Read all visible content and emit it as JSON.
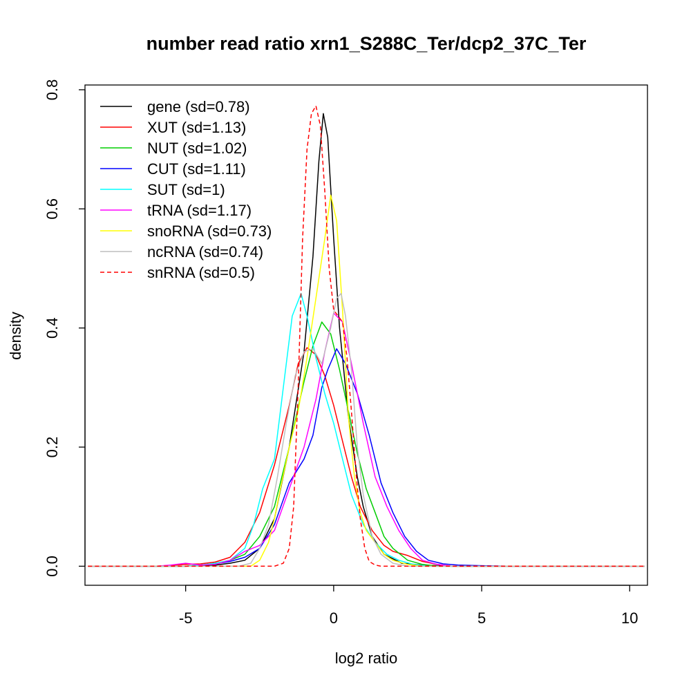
{
  "chart_data": {
    "type": "line",
    "title": "number read ratio xrn1_S288C_Ter/dcp2_37C_Ter",
    "xlabel": "log2 ratio",
    "ylabel": "density",
    "xlim": [
      -8.4,
      10.6
    ],
    "ylim": [
      -0.032,
      0.808
    ],
    "x_ticks": [
      -5,
      0,
      5,
      10
    ],
    "y_ticks": [
      0.0,
      0.2,
      0.4,
      0.6,
      0.8
    ],
    "x_tick_labels": [
      "-5",
      "0",
      "5",
      "10"
    ],
    "y_tick_labels": [
      "0.0",
      "0.2",
      "0.4",
      "0.6",
      "0.8"
    ],
    "grid": false,
    "legend_position": "top-left",
    "series": [
      {
        "name": "gene (sd=0.78)",
        "color": "#000000",
        "dash": "solid",
        "points": [
          [
            -8.3,
            0
          ],
          [
            -5,
            0
          ],
          [
            -4,
            0.002
          ],
          [
            -3.5,
            0.005
          ],
          [
            -3,
            0.01
          ],
          [
            -2.5,
            0.03
          ],
          [
            -2,
            0.08
          ],
          [
            -1.5,
            0.2
          ],
          [
            -1,
            0.36
          ],
          [
            -0.7,
            0.52
          ],
          [
            -0.5,
            0.68
          ],
          [
            -0.35,
            0.76
          ],
          [
            -0.2,
            0.72
          ],
          [
            0,
            0.55
          ],
          [
            0.2,
            0.4
          ],
          [
            0.5,
            0.25
          ],
          [
            0.8,
            0.15
          ],
          [
            1,
            0.1
          ],
          [
            1.3,
            0.05
          ],
          [
            1.7,
            0.02
          ],
          [
            2.3,
            0.005
          ],
          [
            3,
            0.002
          ],
          [
            4,
            0
          ],
          [
            10.5,
            0
          ]
        ]
      },
      {
        "name": "XUT (sd=1.13)",
        "color": "#ff0000",
        "dash": "solid",
        "points": [
          [
            -8.3,
            0
          ],
          [
            -6,
            0
          ],
          [
            -5,
            0.003
          ],
          [
            -4.5,
            0.004
          ],
          [
            -4,
            0.007
          ],
          [
            -3.5,
            0.015
          ],
          [
            -3,
            0.04
          ],
          [
            -2.5,
            0.09
          ],
          [
            -2,
            0.17
          ],
          [
            -1.5,
            0.27
          ],
          [
            -1.2,
            0.34
          ],
          [
            -0.9,
            0.367
          ],
          [
            -0.6,
            0.355
          ],
          [
            -0.3,
            0.32
          ],
          [
            0,
            0.27
          ],
          [
            0.3,
            0.21
          ],
          [
            0.6,
            0.15
          ],
          [
            0.9,
            0.1
          ],
          [
            1.3,
            0.06
          ],
          [
            1.7,
            0.035
          ],
          [
            2,
            0.025
          ],
          [
            2.5,
            0.018
          ],
          [
            3,
            0.008
          ],
          [
            3.5,
            0.003
          ],
          [
            4,
            0
          ],
          [
            10.5,
            0
          ]
        ]
      },
      {
        "name": "NUT (sd=1.02)",
        "color": "#00cd00",
        "dash": "solid",
        "points": [
          [
            -8.3,
            0
          ],
          [
            -5,
            0
          ],
          [
            -4.5,
            0.002
          ],
          [
            -4,
            0.005
          ],
          [
            -3.5,
            0.01
          ],
          [
            -3,
            0.02
          ],
          [
            -2.5,
            0.05
          ],
          [
            -2,
            0.1
          ],
          [
            -1.5,
            0.2
          ],
          [
            -1,
            0.31
          ],
          [
            -0.7,
            0.37
          ],
          [
            -0.4,
            0.41
          ],
          [
            -0.1,
            0.39
          ],
          [
            0.2,
            0.33
          ],
          [
            0.5,
            0.26
          ],
          [
            0.8,
            0.19
          ],
          [
            1.1,
            0.13
          ],
          [
            1.4,
            0.09
          ],
          [
            1.7,
            0.05
          ],
          [
            2,
            0.03
          ],
          [
            2.5,
            0.01
          ],
          [
            3,
            0.003
          ],
          [
            3.5,
            0
          ],
          [
            10.5,
            0
          ]
        ]
      },
      {
        "name": "CUT (sd=1.11)",
        "color": "#0000ff",
        "dash": "solid",
        "points": [
          [
            -8.3,
            0
          ],
          [
            -5,
            0
          ],
          [
            -4.5,
            0.002
          ],
          [
            -4,
            0.004
          ],
          [
            -3.5,
            0.008
          ],
          [
            -3,
            0.015
          ],
          [
            -2.5,
            0.03
          ],
          [
            -2,
            0.07
          ],
          [
            -1.5,
            0.14
          ],
          [
            -1,
            0.18
          ],
          [
            -0.7,
            0.22
          ],
          [
            -0.4,
            0.3
          ],
          [
            -0.2,
            0.33
          ],
          [
            0.1,
            0.365
          ],
          [
            0.4,
            0.34
          ],
          [
            0.8,
            0.29
          ],
          [
            1.2,
            0.22
          ],
          [
            1.6,
            0.14
          ],
          [
            2,
            0.09
          ],
          [
            2.4,
            0.05
          ],
          [
            2.8,
            0.025
          ],
          [
            3.2,
            0.01
          ],
          [
            3.7,
            0.004
          ],
          [
            4.2,
            0.002
          ],
          [
            5,
            0.001
          ],
          [
            6,
            0
          ],
          [
            10.5,
            0
          ]
        ]
      },
      {
        "name": "SUT (sd=1)",
        "color": "#00ffff",
        "dash": "solid",
        "points": [
          [
            -8.3,
            0
          ],
          [
            -5,
            0
          ],
          [
            -4.5,
            0.002
          ],
          [
            -4,
            0.005
          ],
          [
            -3.5,
            0.01
          ],
          [
            -3,
            0.03
          ],
          [
            -2.7,
            0.07
          ],
          [
            -2.4,
            0.13
          ],
          [
            -2,
            0.18
          ],
          [
            -1.7,
            0.3
          ],
          [
            -1.4,
            0.42
          ],
          [
            -1.1,
            0.458
          ],
          [
            -0.9,
            0.42
          ],
          [
            -0.6,
            0.35
          ],
          [
            -0.3,
            0.29
          ],
          [
            0,
            0.24
          ],
          [
            0.3,
            0.18
          ],
          [
            0.6,
            0.12
          ],
          [
            1,
            0.07
          ],
          [
            1.4,
            0.04
          ],
          [
            1.8,
            0.02
          ],
          [
            2.2,
            0.01
          ],
          [
            2.7,
            0.003
          ],
          [
            3.2,
            0
          ],
          [
            10.5,
            0
          ]
        ]
      },
      {
        "name": "tRNA (sd=1.17)",
        "color": "#ff00ff",
        "dash": "solid",
        "points": [
          [
            -8.3,
            0
          ],
          [
            -6,
            0
          ],
          [
            -5.5,
            0.002
          ],
          [
            -5,
            0.005
          ],
          [
            -4.5,
            0.002
          ],
          [
            -4,
            0.003
          ],
          [
            -3.5,
            0.01
          ],
          [
            -3,
            0.025
          ],
          [
            -2.5,
            0.035
          ],
          [
            -2,
            0.06
          ],
          [
            -1.5,
            0.13
          ],
          [
            -1,
            0.2
          ],
          [
            -0.6,
            0.28
          ],
          [
            -0.3,
            0.36
          ],
          [
            0,
            0.425
          ],
          [
            0.3,
            0.41
          ],
          [
            0.6,
            0.34
          ],
          [
            1,
            0.24
          ],
          [
            1.4,
            0.15
          ],
          [
            1.8,
            0.1
          ],
          [
            2.2,
            0.06
          ],
          [
            2.6,
            0.03
          ],
          [
            3,
            0.01
          ],
          [
            3.5,
            0.003
          ],
          [
            4,
            0
          ],
          [
            10.5,
            0
          ]
        ]
      },
      {
        "name": "snoRNA (sd=0.73)",
        "color": "#ffff00",
        "dash": "solid",
        "points": [
          [
            -8.3,
            0
          ],
          [
            -2.8,
            0
          ],
          [
            -2.5,
            0.01
          ],
          [
            -2.2,
            0.04
          ],
          [
            -2,
            0.08
          ],
          [
            -1.8,
            0.13
          ],
          [
            -1.5,
            0.2
          ],
          [
            -1.2,
            0.26
          ],
          [
            -0.9,
            0.35
          ],
          [
            -0.6,
            0.45
          ],
          [
            -0.3,
            0.55
          ],
          [
            -0.1,
            0.623
          ],
          [
            0.1,
            0.58
          ],
          [
            0.3,
            0.43
          ],
          [
            0.5,
            0.25
          ],
          [
            0.7,
            0.15
          ],
          [
            0.9,
            0.09
          ],
          [
            1.1,
            0.06
          ],
          [
            1.4,
            0.04
          ],
          [
            1.7,
            0.02
          ],
          [
            2,
            0.01
          ],
          [
            2.5,
            0.003
          ],
          [
            3,
            0
          ],
          [
            10.5,
            0
          ]
        ]
      },
      {
        "name": "ncRNA (sd=0.74)",
        "color": "#bebebe",
        "dash": "solid",
        "points": [
          [
            -8.3,
            0
          ],
          [
            -3.2,
            0
          ],
          [
            -2.8,
            0.005
          ],
          [
            -2.5,
            0.03
          ],
          [
            -2.2,
            0.07
          ],
          [
            -1.9,
            0.15
          ],
          [
            -1.6,
            0.24
          ],
          [
            -1.3,
            0.32
          ],
          [
            -1,
            0.36
          ],
          [
            -0.7,
            0.365
          ],
          [
            -0.4,
            0.34
          ],
          [
            -0.1,
            0.4
          ],
          [
            0.1,
            0.45
          ],
          [
            0.25,
            0.458
          ],
          [
            0.4,
            0.42
          ],
          [
            0.6,
            0.33
          ],
          [
            0.8,
            0.2
          ],
          [
            1,
            0.12
          ],
          [
            1.3,
            0.05
          ],
          [
            1.6,
            0.02
          ],
          [
            2,
            0.005
          ],
          [
            2.5,
            0
          ],
          [
            10.5,
            0
          ]
        ]
      },
      {
        "name": "snRNA (sd=0.5)",
        "color": "#ff0000",
        "dash": "dashed",
        "points": [
          [
            -8.3,
            0
          ],
          [
            -2,
            0
          ],
          [
            -1.7,
            0.005
          ],
          [
            -1.5,
            0.03
          ],
          [
            -1.35,
            0.1
          ],
          [
            -1.2,
            0.3
          ],
          [
            -1.05,
            0.55
          ],
          [
            -0.9,
            0.7
          ],
          [
            -0.75,
            0.76
          ],
          [
            -0.6,
            0.773
          ],
          [
            -0.45,
            0.74
          ],
          [
            -0.3,
            0.63
          ],
          [
            -0.15,
            0.5
          ],
          [
            0,
            0.43
          ],
          [
            0.15,
            0.42
          ],
          [
            0.3,
            0.41
          ],
          [
            0.45,
            0.35
          ],
          [
            0.6,
            0.26
          ],
          [
            0.75,
            0.16
          ],
          [
            0.9,
            0.08
          ],
          [
            1.05,
            0.03
          ],
          [
            1.2,
            0.008
          ],
          [
            1.4,
            0.002
          ],
          [
            1.6,
            0
          ],
          [
            10.5,
            0
          ]
        ]
      }
    ]
  }
}
